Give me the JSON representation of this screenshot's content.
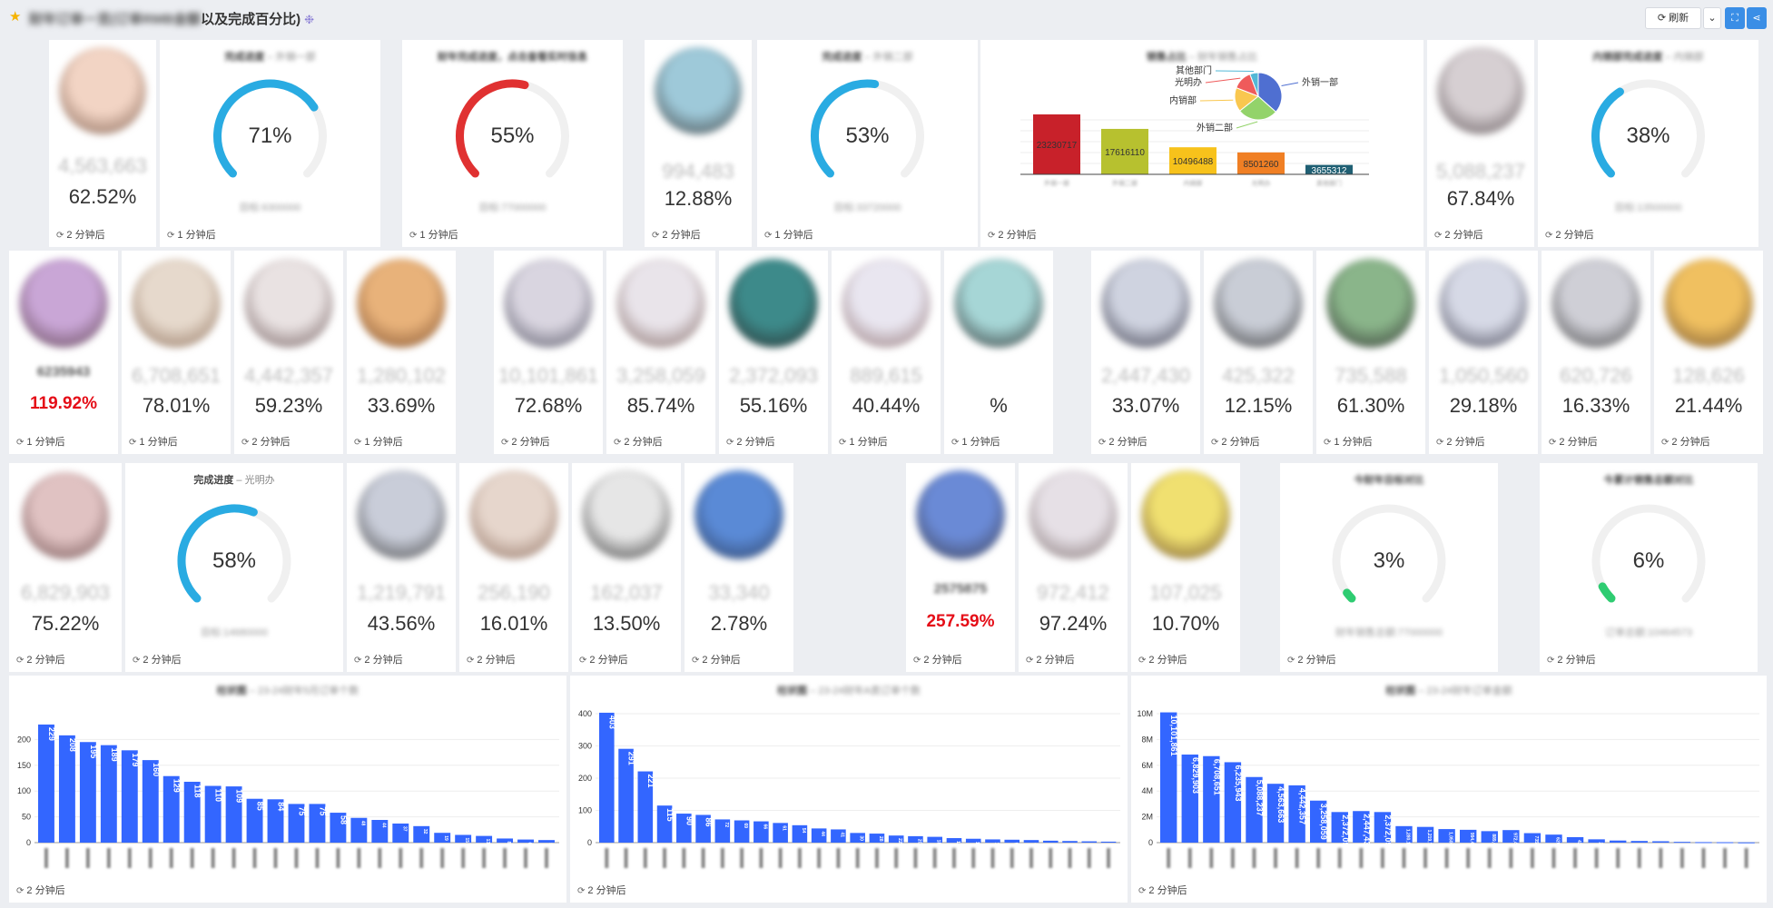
{
  "header": {
    "title_blurred": "财年订单一览(订单RMB金额",
    "title_visible": "以及完成百分比)",
    "refresh_label": "刷新"
  },
  "colors": {
    "gauge_blue": "#29abe2",
    "gauge_red": "#e03131",
    "gauge_green": "#2ecc71",
    "bar_blue": "#3366ff",
    "track": "#f0f0f0"
  },
  "row1": {
    "p1": {
      "amount": "4,563,663",
      "pct": "62.52%",
      "foot": "2 分钟后"
    },
    "g1": {
      "title": "完成进度",
      "sub": "外销一部",
      "value": "71%",
      "pct": 71,
      "note": "目标:6300000",
      "foot": "1 分钟后"
    },
    "g2": {
      "title": "财年完成进度，点击查看实时信息",
      "value": "55%",
      "pct": 55,
      "note": "目标:77000000",
      "foot": "1 分钟后"
    },
    "p2": {
      "amount": "994,483",
      "pct": "12.88%",
      "foot": "2 分钟后"
    },
    "g3": {
      "title": "完成进度",
      "sub": "外销二部",
      "value": "53%",
      "pct": 53,
      "note": "目标:33720000",
      "foot": "1 分钟后"
    },
    "sales": {
      "title": "销售占比",
      "sub": "财年销售占比",
      "foot": "2 分钟后",
      "bars": [
        {
          "label": "23230717",
          "value": 23230717,
          "color": "#c8212a",
          "cat": "外销一部"
        },
        {
          "label": "17616110",
          "value": 17616110,
          "color": "#b7c12f",
          "cat": "外销二部"
        },
        {
          "label": "10496488",
          "value": 10496488,
          "color": "#f7c21b",
          "cat": "内销部"
        },
        {
          "label": "8501260",
          "value": 8501260,
          "color": "#f07f24",
          "cat": "光明办"
        },
        {
          "label": "3655312",
          "value": 3655312,
          "color": "#1f5f73",
          "cat": "其他部门"
        }
      ],
      "pie": [
        {
          "name": "外销一部",
          "value": 23230717,
          "color": "#4f6fd1"
        },
        {
          "name": "外销二部",
          "value": 17616110,
          "color": "#93d36a"
        },
        {
          "name": "内销部",
          "value": 10496488,
          "color": "#f9c74f"
        },
        {
          "name": "光明办",
          "value": 8501260,
          "color": "#ef5b5b"
        },
        {
          "name": "其他部门",
          "value": 3655312,
          "color": "#52b8d6"
        }
      ]
    },
    "p3": {
      "amount": "5,088,237",
      "pct": "67.84%",
      "foot": "2 分钟后"
    },
    "g4": {
      "title": "内销部完成进度",
      "sub": "内销部",
      "value": "38%",
      "pct": 38,
      "note": "目标:13500000",
      "foot": "2 分钟后"
    }
  },
  "row2": [
    {
      "amount": "6235943",
      "pct": "119.92%",
      "red": true,
      "foot": "1 分钟后"
    },
    {
      "amount": "6,708,651",
      "pct": "78.01%",
      "foot": "1 分钟后"
    },
    {
      "amount": "4,442,357",
      "pct": "59.23%",
      "foot": "2 分钟后"
    },
    {
      "amount": "1,280,102",
      "pct": "33.69%",
      "foot": "1 分钟后"
    },
    {
      "amount": "10,101,861",
      "pct": "72.68%",
      "foot": "2 分钟后"
    },
    {
      "amount": "3,258,059",
      "pct": "85.74%",
      "foot": "2 分钟后"
    },
    {
      "amount": "2,372,093",
      "pct": "55.16%",
      "foot": "2 分钟后"
    },
    {
      "amount": "889,615",
      "pct": "40.44%",
      "foot": "1 分钟后"
    },
    {
      "amount": "",
      "pct": "%",
      "foot": "1 分钟后"
    },
    {
      "amount": "2,447,430",
      "pct": "33.07%",
      "foot": "2 分钟后"
    },
    {
      "amount": "425,322",
      "pct": "12.15%",
      "foot": "2 分钟后"
    },
    {
      "amount": "735,588",
      "pct": "61.30%",
      "foot": "1 分钟后"
    },
    {
      "amount": "1,050,560",
      "pct": "29.18%",
      "foot": "2 分钟后"
    },
    {
      "amount": "620,726",
      "pct": "16.33%",
      "foot": "2 分钟后"
    },
    {
      "amount": "128,626",
      "pct": "21.44%",
      "foot": "2 分钟后"
    }
  ],
  "row3": {
    "p1": {
      "amount": "6,829,903",
      "pct": "75.22%",
      "foot": "2 分钟后"
    },
    "g1": {
      "title": "完成进度",
      "sub": "光明办",
      "value": "58%",
      "pct": 58,
      "note": "目标:14680000",
      "foot": "2 分钟后"
    },
    "people": [
      {
        "amount": "1,219,791",
        "pct": "43.56%",
        "foot": "2 分钟后"
      },
      {
        "amount": "256,190",
        "pct": "16.01%",
        "foot": "2 分钟后"
      },
      {
        "amount": "162,037",
        "pct": "13.50%",
        "foot": "2 分钟后"
      },
      {
        "amount": "33,340",
        "pct": "2.78%",
        "foot": "2 分钟后"
      },
      {
        "amount": "2575875",
        "pct": "257.59%",
        "red": true,
        "foot": "2 分钟后"
      },
      {
        "amount": "972,412",
        "pct": "97.24%",
        "foot": "2 分钟后"
      },
      {
        "amount": "107,025",
        "pct": "10.70%",
        "foot": "2 分钟后"
      }
    ],
    "g2": {
      "title": "今财年目标对比",
      "value": "3%",
      "pct": 3,
      "note": "财年销售总额:77000000",
      "foot": "2 分钟后"
    },
    "g3": {
      "title": "今累计销售总额对比",
      "value": "6%",
      "pct": 6,
      "note": "订单总额:10464573",
      "foot": "2 分钟后"
    }
  },
  "chart_data": [
    {
      "type": "bar",
      "title": "柱状图",
      "subtitle": "23-24财年5月订单个数",
      "foot": "2 分钟后",
      "ylim": [
        0,
        250
      ],
      "yticks": [
        0,
        50,
        100,
        150,
        200
      ],
      "values": [
        229,
        208,
        195,
        189,
        179,
        160,
        129,
        118,
        110,
        109,
        85,
        84,
        75,
        75,
        58,
        48,
        44,
        37,
        32,
        19,
        15,
        13,
        8,
        6,
        5
      ]
    },
    {
      "type": "bar",
      "title": "柱状图",
      "subtitle": "23-24财年A类订单个数",
      "foot": "2 分钟后",
      "ylim": [
        0,
        400
      ],
      "yticks": [
        0,
        100,
        200,
        300,
        400
      ],
      "values": [
        403,
        291,
        221,
        115,
        90,
        86,
        72,
        69,
        66,
        61,
        54,
        44,
        41,
        30,
        28,
        22,
        20,
        18,
        14,
        12,
        10,
        9,
        8,
        6,
        5,
        4,
        3
      ]
    },
    {
      "type": "bar",
      "title": "柱状图",
      "subtitle": "23-24财年订单金额",
      "foot": "2 分钟后",
      "ylim": [
        0,
        10000000
      ],
      "yticks": [
        0,
        2000000,
        4000000,
        6000000,
        8000000,
        10000000
      ],
      "ytick_labels": [
        "0",
        "2M",
        "4M",
        "6M",
        "8M",
        "10M"
      ],
      "values": [
        10101861,
        6829903,
        6708651,
        6235943,
        5088237,
        4563663,
        4442357,
        3258059,
        2372093,
        2447430,
        2372093,
        1280102,
        1219791,
        1050560,
        994483,
        889615,
        972412,
        735588,
        620726,
        425322,
        256190,
        162037,
        128626,
        107025,
        60000,
        40000,
        33340,
        20000
      ]
    }
  ]
}
